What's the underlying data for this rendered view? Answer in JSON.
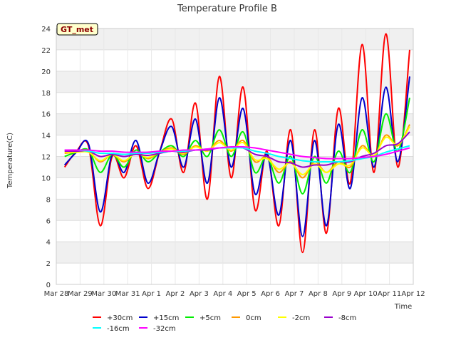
{
  "chart_data": {
    "type": "line",
    "title": "Temperature Profile B",
    "xlabel": "Time",
    "ylabel": "Temperature(C)",
    "badge": "GT_met",
    "ylim": [
      0,
      24
    ],
    "yticks": [
      0,
      2,
      4,
      6,
      8,
      10,
      12,
      14,
      16,
      18,
      20,
      22,
      24
    ],
    "xlim": [
      "Mar 28",
      "Apr 12"
    ],
    "xticks": [
      "Mar 28",
      "Mar 29",
      "Mar 30",
      "Mar 31",
      "Apr 1",
      "Apr 2",
      "Apr 3",
      "Apr 4",
      "Apr 5",
      "Apr 6",
      "Apr 7",
      "Apr 8",
      "Apr 9",
      "Apr 10",
      "Apr 11",
      "Apr 12"
    ],
    "grid": true,
    "legend_position": "bottom",
    "x_dates": [
      "Mar 28",
      "Mar 28 12:00",
      "Mar 29",
      "Mar 29 12:00",
      "Mar 30",
      "Mar 30 12:00",
      "Mar 31",
      "Mar 31 12:00",
      "Apr 1",
      "Apr 1 12:00",
      "Apr 2",
      "Apr 2 12:00",
      "Apr 3",
      "Apr 3 12:00",
      "Apr 4",
      "Apr 4 12:00",
      "Apr 5",
      "Apr 5 12:00",
      "Apr 6",
      "Apr 6 12:00",
      "Apr 7",
      "Apr 7 12:00",
      "Apr 8",
      "Apr 8 12:00",
      "Apr 9",
      "Apr 9 12:00",
      "Apr 10",
      "Apr 10 12:00",
      "Apr 11",
      "Apr 11 12:00"
    ],
    "series": [
      {
        "name": "+30cm",
        "color": "#ff0000",
        "values": [
          11.0,
          12.5,
          13.0,
          5.5,
          12.0,
          10.0,
          13.0,
          9.0,
          12.5,
          15.5,
          10.5,
          17.0,
          8.0,
          19.5,
          10.0,
          18.5,
          7.0,
          12.5,
          5.5,
          14.5,
          3.0,
          14.5,
          4.8,
          16.5,
          9.5,
          22.5,
          10.5,
          23.5,
          11.0,
          22.0
        ]
      },
      {
        "name": "+15cm",
        "color": "#0000cc",
        "values": [
          11.2,
          12.4,
          13.2,
          6.8,
          12.2,
          10.5,
          13.5,
          9.5,
          12.5,
          14.8,
          11.0,
          15.5,
          9.5,
          17.5,
          11.0,
          16.5,
          8.5,
          12.2,
          6.5,
          13.5,
          4.5,
          13.5,
          5.5,
          15.0,
          9.0,
          17.5,
          11.0,
          18.5,
          11.5,
          19.5
        ]
      },
      {
        "name": "+5cm",
        "color": "#00ee00",
        "values": [
          12.0,
          12.4,
          12.6,
          10.5,
          12.2,
          11.0,
          12.6,
          11.5,
          12.4,
          13.0,
          12.0,
          13.5,
          12.0,
          14.5,
          12.0,
          14.3,
          10.5,
          12.0,
          9.5,
          12.0,
          8.5,
          12.0,
          9.5,
          12.5,
          10.5,
          14.5,
          11.5,
          16.0,
          12.5,
          17.5
        ]
      },
      {
        "name": "0cm",
        "color": "#ff9900",
        "values": [
          12.3,
          12.4,
          12.5,
          11.5,
          12.2,
          11.5,
          12.4,
          11.8,
          12.4,
          12.8,
          12.2,
          13.0,
          12.5,
          13.5,
          12.5,
          13.5,
          11.5,
          12.0,
          10.5,
          11.5,
          10.0,
          11.5,
          10.5,
          11.5,
          11.0,
          13.0,
          12.0,
          14.0,
          13.0,
          15.0
        ]
      },
      {
        "name": "-2cm",
        "color": "#ffff00",
        "values": [
          12.4,
          12.4,
          12.4,
          11.6,
          12.2,
          11.6,
          12.3,
          11.9,
          12.4,
          12.7,
          12.3,
          12.9,
          12.5,
          13.3,
          12.6,
          13.3,
          11.7,
          11.8,
          10.8,
          11.4,
          10.3,
          11.3,
          10.5,
          11.3,
          11.2,
          12.8,
          12.1,
          13.8,
          13.1,
          14.8
        ]
      },
      {
        "name": "-8cm",
        "color": "#9900cc",
        "values": [
          12.5,
          12.5,
          12.5,
          12.0,
          12.2,
          12.0,
          12.2,
          12.1,
          12.3,
          12.5,
          12.4,
          12.6,
          12.6,
          12.8,
          12.8,
          12.8,
          12.2,
          12.0,
          11.5,
          11.4,
          11.0,
          11.2,
          11.2,
          11.5,
          11.5,
          12.0,
          12.3,
          13.0,
          13.2,
          14.3
        ]
      },
      {
        "name": "-16cm",
        "color": "#00ffff",
        "values": [
          12.6,
          12.6,
          12.5,
          12.3,
          12.3,
          12.2,
          12.3,
          12.3,
          12.4,
          12.5,
          12.5,
          12.6,
          12.7,
          12.8,
          12.8,
          12.8,
          12.5,
          12.3,
          12.0,
          11.8,
          11.6,
          11.5,
          11.5,
          11.5,
          11.6,
          11.8,
          12.0,
          12.4,
          12.7,
          13.0
        ]
      },
      {
        "name": "-32cm",
        "color": "#ff00ff",
        "values": [
          12.6,
          12.6,
          12.6,
          12.5,
          12.5,
          12.4,
          12.4,
          12.4,
          12.5,
          12.5,
          12.6,
          12.6,
          12.7,
          12.8,
          12.9,
          12.9,
          12.8,
          12.6,
          12.4,
          12.2,
          12.0,
          11.9,
          11.8,
          11.8,
          11.8,
          11.9,
          12.0,
          12.2,
          12.5,
          12.8
        ]
      }
    ]
  }
}
